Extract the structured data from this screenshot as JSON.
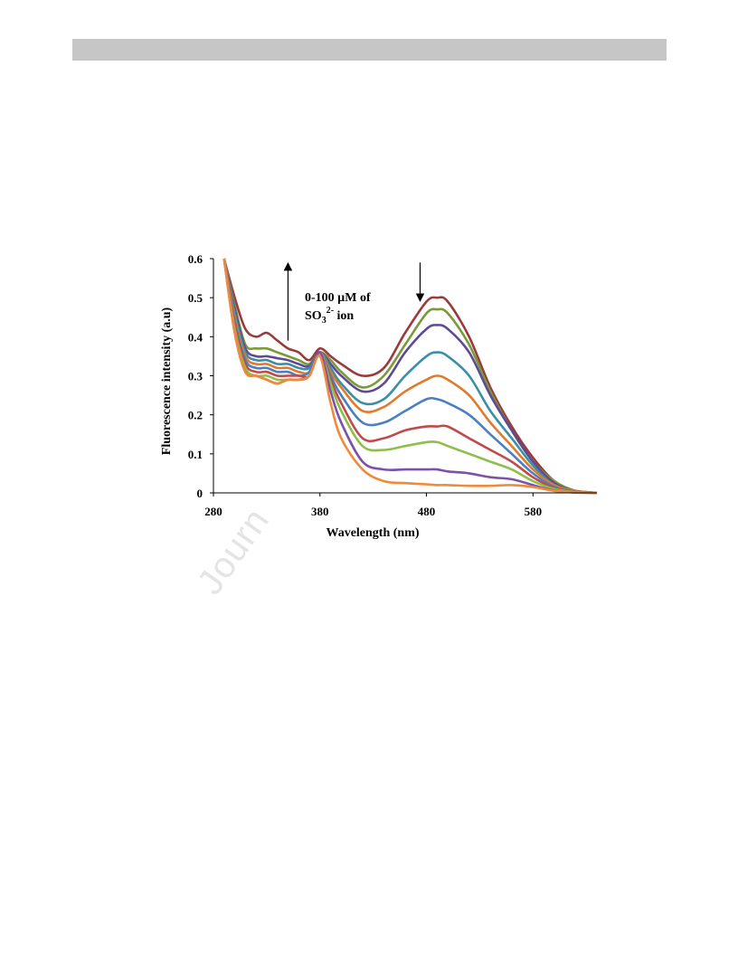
{
  "watermark": "Journ",
  "chart_data": {
    "type": "line",
    "title": "",
    "xlabel": "Wavelength (nm)",
    "ylabel": "Fluorescence intensity (a.u)",
    "xlim": [
      280,
      640
    ],
    "ylim": [
      0,
      0.6
    ],
    "xticks": [
      280,
      380,
      480,
      580
    ],
    "yticks": [
      0,
      0.1,
      0.2,
      0.3,
      0.4,
      0.5,
      0.6
    ],
    "grid": false,
    "annotation": {
      "line1": "0-100 µM of",
      "line2_main": "SO",
      "line2_sub": "3",
      "line2_sup": "2-",
      "line2_end": " ion"
    },
    "arrows": [
      {
        "direction": "up",
        "x": 350,
        "y_from": 0.39,
        "y_to": 0.58
      },
      {
        "direction": "down",
        "x": 474,
        "y_from": 0.59,
        "y_to": 0.5
      }
    ],
    "x": [
      290,
      300,
      310,
      320,
      330,
      340,
      350,
      360,
      370,
      380,
      390,
      400,
      420,
      440,
      460,
      480,
      490,
      500,
      520,
      540,
      560,
      580,
      600,
      620,
      640
    ],
    "series": [
      {
        "color": "#9b3a3a",
        "values": [
          0.6,
          0.5,
          0.42,
          0.4,
          0.41,
          0.39,
          0.37,
          0.36,
          0.34,
          0.37,
          0.35,
          0.33,
          0.3,
          0.32,
          0.41,
          0.49,
          0.5,
          0.49,
          0.4,
          0.27,
          0.17,
          0.09,
          0.03,
          0.005,
          0
        ]
      },
      {
        "color": "#7a9a3a",
        "values": [
          0.6,
          0.48,
          0.38,
          0.37,
          0.37,
          0.36,
          0.35,
          0.34,
          0.33,
          0.36,
          0.34,
          0.31,
          0.27,
          0.3,
          0.38,
          0.46,
          0.47,
          0.46,
          0.38,
          0.26,
          0.16,
          0.08,
          0.03,
          0.005,
          0
        ]
      },
      {
        "color": "#5e4a94",
        "values": [
          0.6,
          0.47,
          0.37,
          0.35,
          0.35,
          0.345,
          0.34,
          0.33,
          0.325,
          0.36,
          0.33,
          0.3,
          0.26,
          0.28,
          0.36,
          0.42,
          0.43,
          0.42,
          0.36,
          0.25,
          0.16,
          0.08,
          0.025,
          0.005,
          0
        ]
      },
      {
        "color": "#3a8fa8",
        "values": [
          0.6,
          0.46,
          0.36,
          0.34,
          0.34,
          0.33,
          0.33,
          0.32,
          0.32,
          0.36,
          0.32,
          0.28,
          0.23,
          0.24,
          0.3,
          0.35,
          0.36,
          0.35,
          0.3,
          0.21,
          0.14,
          0.07,
          0.02,
          0.005,
          0
        ]
      },
      {
        "color": "#e07a2e",
        "values": [
          0.6,
          0.45,
          0.35,
          0.33,
          0.33,
          0.32,
          0.32,
          0.31,
          0.31,
          0.36,
          0.31,
          0.27,
          0.21,
          0.22,
          0.26,
          0.29,
          0.3,
          0.29,
          0.25,
          0.18,
          0.12,
          0.06,
          0.02,
          0.005,
          0
        ]
      },
      {
        "color": "#4a7fc0",
        "values": [
          0.6,
          0.44,
          0.34,
          0.32,
          0.32,
          0.31,
          0.31,
          0.3,
          0.31,
          0.36,
          0.3,
          0.25,
          0.18,
          0.18,
          0.21,
          0.24,
          0.24,
          0.23,
          0.2,
          0.15,
          0.1,
          0.05,
          0.015,
          0.003,
          0
        ]
      },
      {
        "color": "#c04a4a",
        "values": [
          0.6,
          0.43,
          0.33,
          0.31,
          0.31,
          0.3,
          0.3,
          0.3,
          0.3,
          0.36,
          0.29,
          0.23,
          0.14,
          0.14,
          0.16,
          0.17,
          0.17,
          0.17,
          0.14,
          0.11,
          0.08,
          0.04,
          0.012,
          0.003,
          0
        ]
      },
      {
        "color": "#8fbf4a",
        "values": [
          0.6,
          0.42,
          0.32,
          0.3,
          0.3,
          0.29,
          0.29,
          0.29,
          0.3,
          0.36,
          0.28,
          0.21,
          0.12,
          0.11,
          0.12,
          0.13,
          0.13,
          0.12,
          0.1,
          0.08,
          0.06,
          0.03,
          0.01,
          0.002,
          0
        ]
      },
      {
        "color": "#7b52a8",
        "values": [
          0.6,
          0.41,
          0.31,
          0.3,
          0.29,
          0.28,
          0.29,
          0.29,
          0.3,
          0.36,
          0.26,
          0.18,
          0.08,
          0.06,
          0.06,
          0.06,
          0.06,
          0.055,
          0.05,
          0.04,
          0.035,
          0.02,
          0.006,
          0.001,
          0
        ]
      },
      {
        "color": "#f08a3a",
        "values": [
          0.6,
          0.41,
          0.31,
          0.3,
          0.29,
          0.28,
          0.29,
          0.29,
          0.3,
          0.35,
          0.23,
          0.14,
          0.06,
          0.03,
          0.025,
          0.022,
          0.02,
          0.02,
          0.018,
          0.018,
          0.02,
          0.015,
          0.005,
          0.001,
          0
        ]
      }
    ]
  }
}
